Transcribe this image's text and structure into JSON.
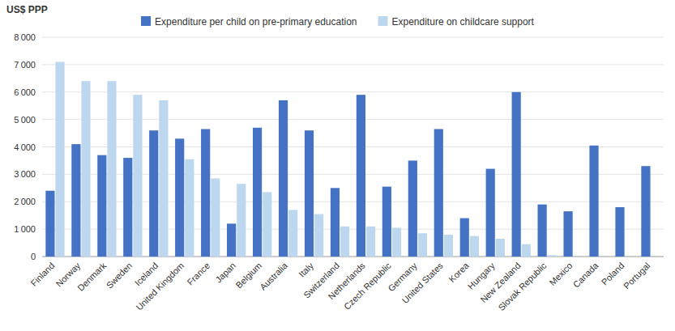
{
  "chart_data": {
    "type": "bar",
    "y_label": "US$ PPP",
    "categories": [
      "Finland",
      "Norway",
      "Denmark",
      "Sweden",
      "Iceland",
      "United Kingdom",
      "France",
      "Japan",
      "Belgium",
      "Australia",
      "Italy",
      "Switzerland",
      "Netherlands",
      "Czech Republic",
      "Germany",
      "United States",
      "Korea",
      "Hungary",
      "New Zealand",
      "Slovak Republic",
      "Mexico",
      "Canada",
      "Poland",
      "Portugal"
    ],
    "series": [
      {
        "name": "Expenditure per child on pre-primary education",
        "color": "#4472C4",
        "values": [
          2400,
          4100,
          3700,
          3600,
          4600,
          4300,
          4650,
          1200,
          4700,
          5700,
          4600,
          2500,
          5900,
          2550,
          3500,
          4650,
          1400,
          3200,
          6000,
          1900,
          1650,
          4050,
          1800,
          3300
        ]
      },
      {
        "name": "Expenditure on childcare support",
        "color": "#BDD7EE",
        "values": [
          7100,
          6400,
          6400,
          5900,
          5700,
          3550,
          2850,
          2650,
          2350,
          1700,
          1550,
          1100,
          1100,
          1050,
          850,
          800,
          750,
          650,
          450,
          50,
          0,
          0,
          0,
          0
        ]
      }
    ],
    "ylim": [
      0,
      8000
    ],
    "yticks": [
      0,
      {
        "value": 1000,
        "label": "1 000"
      },
      {
        "value": 2000,
        "label": "2 000"
      },
      {
        "value": 3000,
        "label": "3 000"
      },
      {
        "value": 4000,
        "label": "4 000"
      },
      {
        "value": 5000,
        "label": "5 000"
      },
      {
        "value": 6000,
        "label": "6 000"
      },
      {
        "value": 7000,
        "label": "7 000"
      },
      {
        "value": 8000,
        "label": "8 000"
      }
    ],
    "grid": true,
    "legend": "top"
  }
}
